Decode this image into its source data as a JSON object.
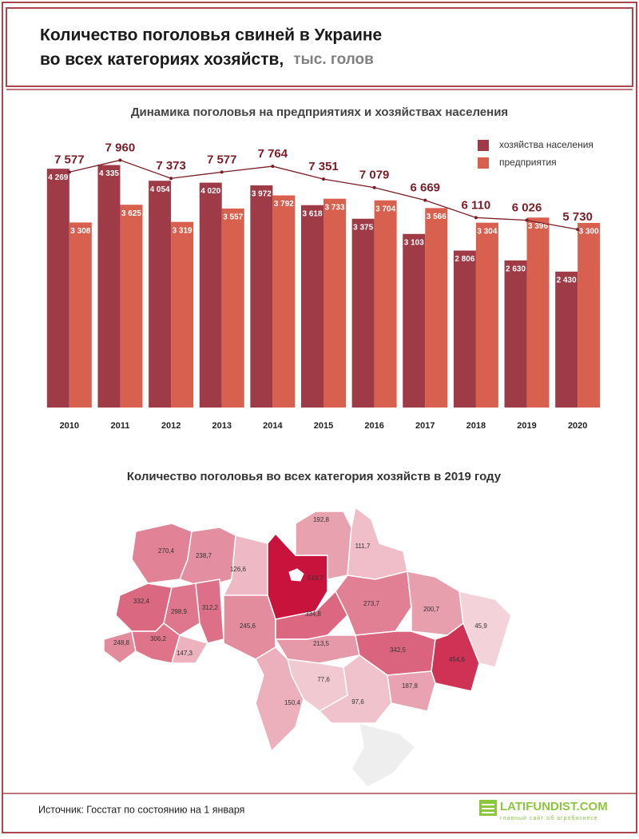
{
  "header": {
    "title_line1": "Количество поголовья свиней в Украине",
    "title_line2": "во всех категориях хозяйств,",
    "unit": "тыс. голов"
  },
  "chart_data": {
    "type": "bar",
    "title": "Динамика поголовья на предприятиях и хозяйствах населения",
    "categories": [
      "2010",
      "2011",
      "2012",
      "2013",
      "2014",
      "2015",
      "2016",
      "2017",
      "2018",
      "2019",
      "2020"
    ],
    "series": [
      {
        "name": "хозяйства населения",
        "color": "#9e3b46",
        "values": [
          4269,
          4335,
          4054,
          4020,
          3972,
          3618,
          3375,
          3103,
          2806,
          2630,
          2430
        ],
        "value_labels": [
          "4 269",
          "4 335",
          "4 054",
          "4 020",
          "3 972",
          "3 618",
          "3 375",
          "3 103",
          "2 806",
          "2 630",
          "2 430"
        ]
      },
      {
        "name": "предприятия",
        "color": "#d7604f",
        "values": [
          3308,
          3625,
          3319,
          3557,
          3792,
          3733,
          3704,
          3566,
          3304,
          3396,
          3300
        ],
        "value_labels": [
          "3 308",
          "3 625",
          "3 319",
          "3 557",
          "3 792",
          "3 733",
          "3 704",
          "3 566",
          "3 304",
          "3 396",
          "3 300"
        ]
      }
    ],
    "line": {
      "color": "#7a1d27",
      "values": [
        7577,
        7960,
        7373,
        7577,
        7764,
        7351,
        7079,
        6669,
        6110,
        6026,
        5730
      ],
      "value_labels": [
        "7 577",
        "7 960",
        "7 373",
        "7 577",
        "7 764",
        "7 351",
        "7 079",
        "6 669",
        "6 110",
        "6 026",
        "5 730"
      ]
    },
    "ylim": [
      0,
      5000
    ],
    "y2lim": [
      0,
      9000
    ],
    "legend": "top-right"
  },
  "map": {
    "title": "Количество поголовья во всех категория хозяйств в 2019 году",
    "regions": [
      {
        "value": 270.4,
        "value_label": "270,4"
      },
      {
        "value": 238.7,
        "value_label": "238,7"
      },
      {
        "value": 126.6,
        "value_label": "126,6"
      },
      {
        "value": 519.7,
        "value_label": "519,7"
      },
      {
        "value": 192.8,
        "value_label": "192,8"
      },
      {
        "value": 111.7,
        "value_label": "111,7"
      },
      {
        "value": 332.4,
        "value_label": "332,4"
      },
      {
        "value": 298.9,
        "value_label": "298,9"
      },
      {
        "value": 312.2,
        "value_label": "312,2"
      },
      {
        "value": 245.6,
        "value_label": "245,6"
      },
      {
        "value": 334.8,
        "value_label": "334,8"
      },
      {
        "value": 273.7,
        "value_label": "273,7"
      },
      {
        "value": 200.7,
        "value_label": "200,7"
      },
      {
        "value": 45.9,
        "value_label": "45,9"
      },
      {
        "value": 248.8,
        "value_label": "248,8"
      },
      {
        "value": 306.2,
        "value_label": "306,2"
      },
      {
        "value": 147.3,
        "value_label": "147,3"
      },
      {
        "value": 213.5,
        "value_label": "213,5"
      },
      {
        "value": 342.5,
        "value_label": "342,5"
      },
      {
        "value": 454.6,
        "value_label": "454,6"
      },
      {
        "value": 77.6,
        "value_label": "77,6"
      },
      {
        "value": 150.4,
        "value_label": "150,4"
      },
      {
        "value": 97.6,
        "value_label": "97,6"
      },
      {
        "value": 187.8,
        "value_label": "187,8"
      }
    ]
  },
  "footer": {
    "source": "Источник: Госстат по состоянию на 1 января",
    "logo": "LATIFUNDIST.COM",
    "tagline": "главный сайт об агробизнесе"
  }
}
